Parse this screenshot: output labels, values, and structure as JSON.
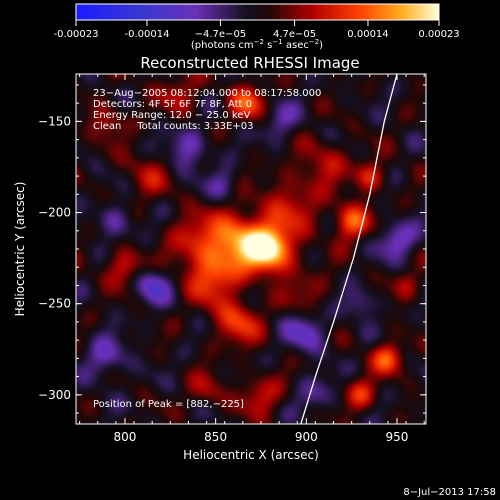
{
  "chart_data": {
    "type": "heatmap",
    "title": "Reconstructed RHESSI Image",
    "xlabel": "Heliocentric X (arcsec)",
    "ylabel": "Heliocentric Y (arcsec)",
    "xlim": [
      773,
      966
    ],
    "ylim": [
      -316,
      -124
    ],
    "x_ticks": [
      800,
      850,
      900,
      950
    ],
    "y_ticks": [
      -150,
      -200,
      -250,
      -300
    ],
    "colorbar": {
      "range": [
        -0.00023,
        0.00023
      ],
      "ticks": [
        "-0.00023",
        "-0.00014",
        "−4.7e−05",
        "4.7e−05",
        "0.00014",
        "0.00023"
      ],
      "tick_values": [
        -0.00023,
        -0.00014,
        -4.7e-05,
        4.7e-05,
        0.00014,
        0.00023
      ],
      "unit_base": "(photons cm",
      "unit_exp1": "−2",
      "unit_mid": " s",
      "unit_exp2": "−1",
      "unit_mid2": " asec",
      "unit_exp3": "−2",
      "unit_end": ")"
    },
    "annotations": [
      "23−Aug−2005 08:12:04.000 to 08:17:58.000",
      "Detectors: 4F 5F 6F 7F 8F, Att 0",
      "Energy Range: 12.0 − 25.0 keV",
      "Clean     Total counts: 3.33E+03"
    ],
    "peak_label": "Position of Peak = [882,−225]",
    "peak": [
      882,
      -225
    ],
    "limb_curve": [
      [
        897,
        -316
      ],
      [
        905,
        -290
      ],
      [
        915,
        -260
      ],
      [
        926,
        -225
      ],
      [
        935,
        -190
      ],
      [
        943,
        -150
      ],
      [
        950,
        -124
      ]
    ],
    "sources": [
      {
        "x": 880,
        "y": -220,
        "amp": 0.00023,
        "sigma": 9
      },
      {
        "x": 862,
        "y": -215,
        "amp": 0.00016,
        "sigma": 11
      },
      {
        "x": 848,
        "y": -235,
        "amp": 0.00012,
        "sigma": 10
      },
      {
        "x": 862,
        "y": -260,
        "amp": 0.00011,
        "sigma": 9
      },
      {
        "x": 838,
        "y": -215,
        "amp": 8e-05,
        "sigma": 10
      },
      {
        "x": 892,
        "y": -195,
        "amp": 8e-05,
        "sigma": 11
      },
      {
        "x": 925,
        "y": -205,
        "amp": 0.00014,
        "sigma": 7
      },
      {
        "x": 910,
        "y": -172,
        "amp": 7e-05,
        "sigma": 9
      },
      {
        "x": 935,
        "y": -180,
        "amp": 0.0001,
        "sigma": 6
      },
      {
        "x": 945,
        "y": -280,
        "amp": 0.00013,
        "sigma": 6
      },
      {
        "x": 930,
        "y": -300,
        "amp": 0.0001,
        "sigma": 6
      },
      {
        "x": 868,
        "y": -140,
        "amp": 0.00012,
        "sigma": 7
      },
      {
        "x": 830,
        "y": -135,
        "amp": 7e-05,
        "sigma": 8
      },
      {
        "x": 800,
        "y": -230,
        "amp": 0.0001,
        "sigma": 7
      },
      {
        "x": 812,
        "y": -180,
        "amp": 6e-05,
        "sigma": 9
      },
      {
        "x": 790,
        "y": -150,
        "amp": 7e-05,
        "sigma": 7
      },
      {
        "x": 875,
        "y": -300,
        "amp": 8e-05,
        "sigma": 8
      },
      {
        "x": 845,
        "y": -298,
        "amp": 6e-05,
        "sigma": 7
      },
      {
        "x": 900,
        "y": -245,
        "amp": 5e-05,
        "sigma": 9
      },
      {
        "x": 955,
        "y": -240,
        "amp": 6e-05,
        "sigma": 6
      },
      {
        "x": 815,
        "y": -240,
        "amp": -0.0001,
        "sigma": 7
      },
      {
        "x": 900,
        "y": -265,
        "amp": -9e-05,
        "sigma": 8
      },
      {
        "x": 835,
        "y": -165,
        "amp": -8e-05,
        "sigma": 8
      },
      {
        "x": 950,
        "y": -215,
        "amp": -0.0001,
        "sigma": 7
      },
      {
        "x": 790,
        "y": -280,
        "amp": -8e-05,
        "sigma": 8
      },
      {
        "x": 885,
        "y": -150,
        "amp": -7e-05,
        "sigma": 7
      },
      {
        "x": 930,
        "y": -250,
        "amp": -7e-05,
        "sigma": 6
      },
      {
        "x": 905,
        "y": -300,
        "amp": -6e-05,
        "sigma": 7
      },
      {
        "x": 795,
        "y": -205,
        "amp": -7e-05,
        "sigma": 7
      },
      {
        "x": 855,
        "y": -185,
        "amp": -6e-05,
        "sigma": 6
      }
    ]
  },
  "footer": {
    "timestamp": "8−Jul−2013 17:58"
  }
}
